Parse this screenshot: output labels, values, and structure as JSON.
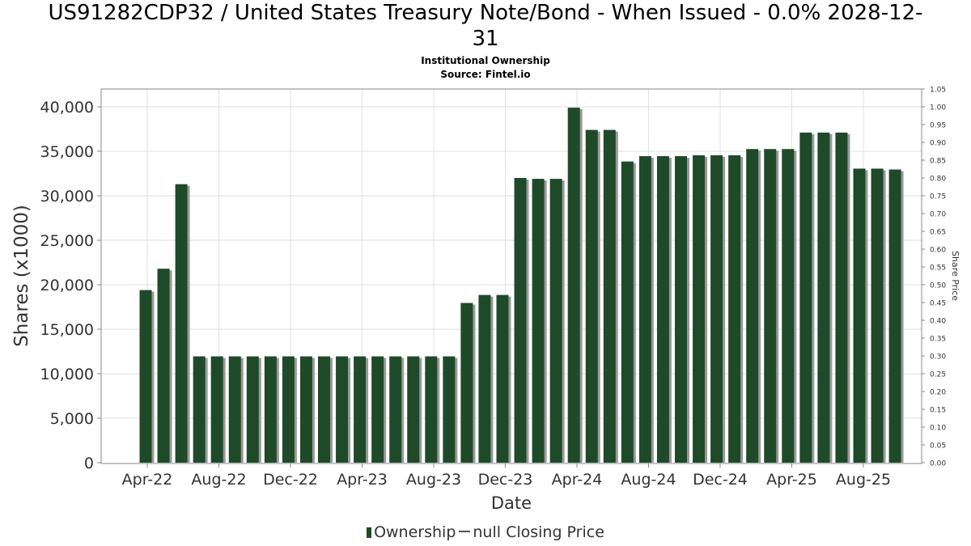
{
  "title_line1": "US91282CDP32 / United States Treasury Note/Bond - When Issued - 0.0% 2028-12-",
  "title_line2": "31",
  "subtitle1": "Institutional Ownership",
  "subtitle2": "Source: Fintel.io",
  "legend": {
    "ownership": "Ownership",
    "price": "null Closing Price"
  },
  "colors": {
    "bar": "#1e4a2a",
    "bar_shadow": "#9a9a9a",
    "grid": "#e2e2e2"
  },
  "chart_data": {
    "type": "bar",
    "xlabel": "Date",
    "ylabel": "Shares (x1000)",
    "y2label": "Share Price",
    "ylim": [
      0,
      41000
    ],
    "y2lim": [
      0,
      1.05
    ],
    "grid": true,
    "legend_position": "bottom",
    "x_tick_labels": [
      "Apr-22",
      "Aug-22",
      "Dec-22",
      "Apr-23",
      "Aug-23",
      "Dec-23",
      "Apr-24",
      "Aug-24",
      "Dec-24",
      "Apr-25",
      "Aug-25"
    ],
    "y_tick_labels": [
      "0",
      "5,000",
      "10,000",
      "15,000",
      "20,000",
      "25,000",
      "30,000",
      "35,000",
      "40,000"
    ],
    "y2_tick_labels": [
      "0.00",
      "0.05",
      "0.10",
      "0.15",
      "0.20",
      "0.25",
      "0.30",
      "0.35",
      "0.40",
      "0.45",
      "0.50",
      "0.55",
      "0.60",
      "0.65",
      "0.70",
      "0.75",
      "0.80",
      "0.85",
      "0.90",
      "0.95",
      "1.00",
      "1.05"
    ],
    "series": [
      {
        "values": [
          19400,
          21800,
          31300,
          11950,
          11950,
          11950,
          11950,
          11950,
          11950,
          11950,
          11950,
          11950,
          11950,
          11950,
          11950,
          11950,
          11950,
          11950,
          17950,
          18850,
          18850,
          32000,
          31900,
          31900,
          39900,
          37400,
          37400,
          33850,
          34450,
          34450,
          34450,
          34550,
          34550,
          34550,
          35250,
          35250,
          35250,
          37100,
          37100,
          37100,
          33050,
          33050,
          32950
        ]
      }
    ]
  }
}
